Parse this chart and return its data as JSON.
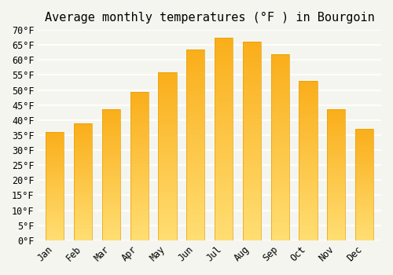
{
  "title": "Average monthly temperatures (°F ) in Bourgoin",
  "months": [
    "Jan",
    "Feb",
    "Mar",
    "Apr",
    "May",
    "Jun",
    "Jul",
    "Aug",
    "Sep",
    "Oct",
    "Nov",
    "Dec"
  ],
  "values": [
    36,
    39,
    43.5,
    49.5,
    56,
    63.5,
    67.5,
    66,
    62,
    53,
    43.5,
    37
  ],
  "bar_color_top": "#FFC200",
  "bar_color_bottom": "#FFD966",
  "edge_color": "#E8A000",
  "ylim": [
    0,
    70
  ],
  "ytick_step": 5,
  "background_color": "#F5F5F0",
  "grid_color": "#FFFFFF",
  "title_fontsize": 11,
  "tick_fontsize": 8.5
}
